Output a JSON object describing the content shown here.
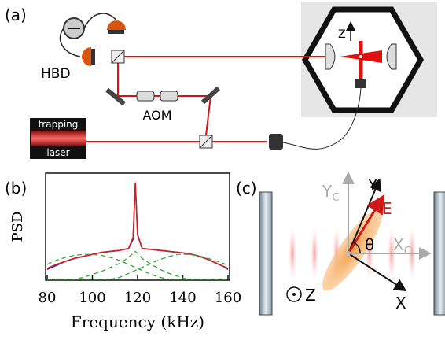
{
  "panel_a": {
    "label": "(a)",
    "hbd": "HBD",
    "aom": "AOM",
    "laser_top": "trapping",
    "laser_bottom": "laser",
    "z_axis": "Z"
  },
  "panel_b": {
    "label": "(b)"
  },
  "panel_c": {
    "label": "(c)",
    "y_cavity": {
      "main": "Y",
      "sub": "C"
    },
    "x_cavity": {
      "main": "X",
      "sub": "C"
    },
    "y_particle": "Y",
    "x_particle": "X",
    "field": "E",
    "angle": "θ",
    "z_axis": "Z"
  },
  "chart_data": {
    "type": "line",
    "xlabel": "Frequency (kHz)",
    "ylabel": "PSD",
    "x": [
      80,
      84,
      88,
      92,
      96,
      100,
      104,
      108,
      112,
      116,
      118,
      119,
      120,
      122,
      126,
      130,
      134,
      138,
      142,
      146,
      150,
      154,
      158,
      160
    ],
    "xlim": [
      80,
      160
    ],
    "xticks": [
      80,
      100,
      120,
      140,
      160
    ],
    "ylim": [
      0,
      1
    ],
    "series": [
      {
        "color": "#2a2ab8",
        "style": "solid",
        "values": [
          0.1,
          0.14,
          0.18,
          0.21,
          0.23,
          0.25,
          0.27,
          0.28,
          0.29,
          0.31,
          0.4,
          0.95,
          0.45,
          0.31,
          0.3,
          0.29,
          0.28,
          0.27,
          0.26,
          0.24,
          0.21,
          0.17,
          0.13,
          0.1
        ]
      },
      {
        "color": "#d62020",
        "style": "solid",
        "values": [
          0.11,
          0.15,
          0.18,
          0.21,
          0.23,
          0.25,
          0.27,
          0.28,
          0.29,
          0.31,
          0.42,
          0.97,
          0.44,
          0.31,
          0.3,
          0.29,
          0.28,
          0.27,
          0.26,
          0.24,
          0.21,
          0.17,
          0.13,
          0.11
        ]
      },
      {
        "color": "#3aa53a",
        "style": "dashed",
        "values": [
          0.15,
          0.19,
          0.22,
          0.24,
          0.25,
          0.25,
          0.24,
          0.22,
          0.19,
          0.15,
          0.13,
          0.12,
          0.11,
          0.09,
          0.05,
          0.02,
          0,
          0,
          0,
          0,
          0,
          0,
          0,
          0
        ]
      },
      {
        "color": "#3aa53a",
        "style": "dashed",
        "values": [
          0,
          0,
          0,
          0,
          0,
          0,
          0,
          0,
          0.02,
          0.06,
          0.08,
          0.09,
          0.1,
          0.12,
          0.16,
          0.2,
          0.23,
          0.25,
          0.25,
          0.24,
          0.22,
          0.19,
          0.16,
          0.14
        ]
      },
      {
        "color": "#3aa53a",
        "style": "dashed",
        "values": [
          0,
          0,
          0,
          0,
          0.02,
          0.05,
          0.08,
          0.12,
          0.16,
          0.22,
          0.26,
          0.28,
          0.26,
          0.21,
          0.15,
          0.1,
          0.06,
          0.03,
          0,
          0,
          0,
          0,
          0,
          0
        ]
      }
    ]
  }
}
